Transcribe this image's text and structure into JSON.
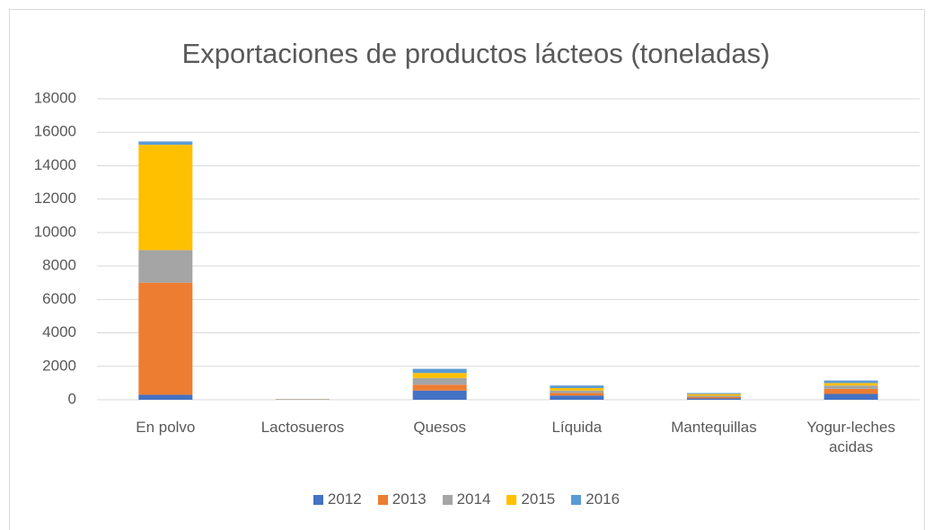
{
  "chart_data": {
    "type": "stacked_bar",
    "title": "Exportaciones de productos lácteos (toneladas)",
    "categories": [
      "En polvo",
      "Lactosueros",
      "Quesos",
      "Líquida",
      "Mantequillas",
      "Yogur-leches acidas"
    ],
    "series": [
      {
        "name": "2012",
        "color": "#4472c4",
        "values": [
          300,
          10,
          550,
          250,
          80,
          350
        ]
      },
      {
        "name": "2013",
        "color": "#ed7d31",
        "values": [
          6700,
          10,
          350,
          150,
          80,
          300
        ]
      },
      {
        "name": "2014",
        "color": "#a5a5a5",
        "values": [
          1950,
          10,
          400,
          150,
          80,
          200
        ]
      },
      {
        "name": "2015",
        "color": "#ffc000",
        "values": [
          6300,
          10,
          300,
          150,
          100,
          150
        ]
      },
      {
        "name": "2016",
        "color": "#5b9bd5",
        "values": [
          200,
          10,
          250,
          150,
          60,
          150
        ]
      }
    ],
    "ylim": [
      0,
      18000
    ],
    "yticks": [
      0,
      2000,
      4000,
      6000,
      8000,
      10000,
      12000,
      14000,
      16000,
      18000
    ],
    "grid": true,
    "legend": "bottom"
  }
}
